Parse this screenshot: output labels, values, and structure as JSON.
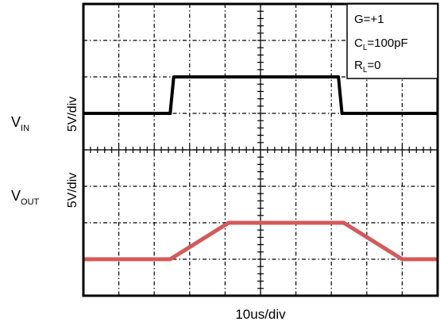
{
  "chart_data": {
    "type": "line",
    "title": "",
    "xlabel": "10us/div",
    "x_divisions": 10,
    "y_divisions": 8,
    "grid": true,
    "annotation_box": {
      "lines": [
        {
          "main": "G=+1",
          "sub": "",
          "rest": ""
        },
        {
          "main": "C",
          "sub": "L",
          "rest": "=100pF"
        },
        {
          "main": "R",
          "sub": "L",
          "rest": "=0"
        }
      ]
    },
    "series": [
      {
        "name_main": "V",
        "name_sub": "IN",
        "scale_label": "5V/div",
        "color": "#000000",
        "x_div": [
          0,
          2.45,
          2.55,
          7.2,
          7.3,
          10
        ],
        "y_div": [
          5.0,
          5.0,
          6.0,
          6.0,
          5.0,
          5.0
        ]
      },
      {
        "name_main": "V",
        "name_sub": "OUT",
        "scale_label": "5V/div",
        "color": "#d45a5a",
        "x_div": [
          0,
          2.45,
          4.1,
          7.35,
          9.0,
          10
        ],
        "y_div": [
          1.0,
          1.0,
          2.0,
          2.0,
          1.0,
          1.0
        ]
      }
    ]
  }
}
